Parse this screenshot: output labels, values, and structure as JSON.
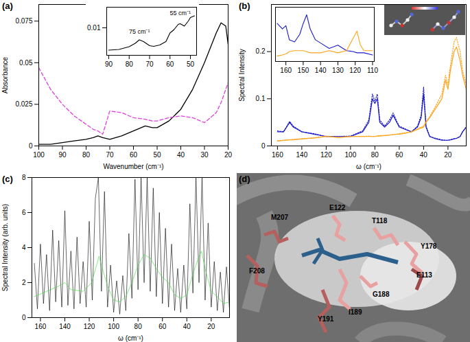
{
  "chart_data": [
    {
      "title": "(a)",
      "type": "line",
      "xlabel": "Wavenumber (cm⁻¹)",
      "ylabel": "Absorbance",
      "xlim": [
        100,
        20
      ],
      "xticks": [
        100,
        90,
        80,
        70,
        60,
        50,
        40,
        30,
        20
      ],
      "ylim": [
        0,
        0.085
      ],
      "yticks": [
        0,
        0.025,
        0.05,
        0.075
      ],
      "x": [
        100,
        95,
        90,
        85,
        80,
        77,
        75,
        73,
        70,
        65,
        60,
        55,
        52,
        50,
        45,
        40,
        35,
        30,
        25,
        23,
        21,
        20
      ],
      "series": [
        {
          "color": "#000000",
          "line_style": "solid",
          "values": [
            0.001,
            0.001,
            0.002,
            0.003,
            0.004,
            0.005,
            0.006,
            0.005,
            0.004,
            0.006,
            0.009,
            0.012,
            0.011,
            0.011,
            0.015,
            0.022,
            0.034,
            0.05,
            0.068,
            0.074,
            0.072,
            0.061
          ]
        },
        {
          "color": "#e040e0",
          "line_style": "dashed",
          "values": [
            0.047,
            0.034,
            0.025,
            0.018,
            0.013,
            0.01,
            0.009,
            0.007,
            0.021,
            0.02,
            0.017,
            0.016,
            0.015,
            0.015,
            0.017,
            0.018,
            0.017,
            0.014,
            0.02,
            0.026,
            0.034,
            0.038
          ]
        }
      ]
    },
    {
      "type": "line",
      "xlim": [
        91,
        47
      ],
      "xticks": [
        90,
        80,
        70,
        60,
        50
      ],
      "ylim": [
        0.002,
        0.016
      ],
      "yticks": [
        0.01
      ],
      "x": [
        90,
        85,
        80,
        77,
        75,
        73,
        70,
        68,
        65,
        62,
        60,
        58,
        56,
        55,
        53,
        51,
        50,
        48
      ],
      "series": [
        {
          "color": "#000000",
          "line_style": "solid",
          "values": [
            0.0035,
            0.0037,
            0.0045,
            0.0055,
            0.0065,
            0.006,
            0.0048,
            0.0046,
            0.005,
            0.006,
            0.0085,
            0.0095,
            0.011,
            0.0112,
            0.0105,
            0.012,
            0.013,
            0.0135
          ]
        }
      ],
      "annotations": [
        {
          "text": "75 cm⁻¹",
          "x": 75,
          "y": 0.0075
        },
        {
          "text": "55 cm⁻¹",
          "x": 55,
          "y": 0.0128
        }
      ]
    },
    {
      "title": "(b)",
      "type": "line",
      "xlabel": "ω (cm⁻¹)",
      "ylabel": "Spectral Intensity",
      "xlim": [
        165,
        5
      ],
      "xticks": [
        160,
        140,
        120,
        100,
        80,
        60,
        40,
        20
      ],
      "ylim": [
        0,
        0.3
      ],
      "yticks": [
        0,
        0.1,
        0.2
      ],
      "x": [
        160,
        155,
        150,
        147,
        140,
        130,
        120,
        110,
        100,
        90,
        85,
        82,
        80,
        78,
        76,
        72,
        68,
        65,
        62,
        60,
        55,
        50,
        45,
        42,
        40,
        38,
        35,
        30,
        25,
        22,
        20,
        18,
        15,
        13,
        10,
        8,
        5
      ],
      "series": [
        {
          "color": "#1a1acc",
          "line_style": "solid",
          "values": [
            0.03,
            0.03,
            0.05,
            0.04,
            0.03,
            0.025,
            0.02,
            0.02,
            0.02,
            0.03,
            0.05,
            0.1,
            0.09,
            0.1,
            0.05,
            0.04,
            0.05,
            0.065,
            0.05,
            0.04,
            0.035,
            0.03,
            0.04,
            0.06,
            0.11,
            0.04,
            0.02,
            0.015,
            0.012,
            0.012,
            0.012,
            0.013,
            0.015,
            0.016,
            0.02,
            0.03,
            0.04
          ]
        },
        {
          "color": "#1a1acc",
          "line_style": "dotted",
          "values": [
            0.032,
            0.03,
            0.052,
            0.042,
            0.03,
            0.026,
            0.02,
            0.02,
            0.021,
            0.032,
            0.055,
            0.11,
            0.095,
            0.11,
            0.055,
            0.042,
            0.055,
            0.07,
            0.052,
            0.042,
            0.036,
            0.03,
            0.042,
            0.065,
            0.125,
            0.042,
            0.02,
            0.016,
            0.013,
            0.012,
            0.012,
            0.013,
            0.015,
            0.016,
            0.02,
            0.03,
            0.04
          ]
        },
        {
          "color": "#ffa31a",
          "line_style": "solid",
          "values": [
            0.01,
            0.012,
            0.013,
            0.013,
            0.015,
            0.017,
            0.02,
            0.018,
            0.02,
            0.02,
            0.02,
            0.02,
            0.02,
            0.021,
            0.021,
            0.022,
            0.023,
            0.024,
            0.025,
            0.025,
            0.027,
            0.03,
            0.035,
            0.038,
            0.04,
            0.05,
            0.06,
            0.08,
            0.1,
            0.14,
            0.12,
            0.16,
            0.2,
            0.21,
            0.18,
            0.15,
            0.12
          ]
        },
        {
          "color": "#ffa31a",
          "line_style": "dotted",
          "values": [
            0.011,
            0.012,
            0.013,
            0.014,
            0.015,
            0.017,
            0.021,
            0.018,
            0.02,
            0.02,
            0.021,
            0.02,
            0.02,
            0.021,
            0.022,
            0.022,
            0.023,
            0.024,
            0.025,
            0.026,
            0.028,
            0.03,
            0.036,
            0.04,
            0.042,
            0.052,
            0.062,
            0.085,
            0.11,
            0.15,
            0.13,
            0.17,
            0.22,
            0.23,
            0.2,
            0.16,
            0.13
          ]
        }
      ]
    },
    {
      "type": "line",
      "tick_labels": "x",
      "xlim": [
        166,
        109
      ],
      "xticks": [
        160,
        150,
        140,
        130,
        120,
        110
      ],
      "ylim": [
        0.01,
        0.06
      ],
      "x": [
        165,
        162,
        160,
        158,
        155,
        152,
        150,
        148,
        146,
        143,
        140,
        135,
        130,
        125,
        121,
        119,
        117,
        115,
        110
      ],
      "series": [
        {
          "color": "#1a1acc",
          "line_style": "solid",
          "values": [
            0.045,
            0.04,
            0.043,
            0.03,
            0.028,
            0.035,
            0.045,
            0.053,
            0.04,
            0.03,
            0.027,
            0.022,
            0.025,
            0.02,
            0.019,
            0.018,
            0.018,
            0.018,
            0.016
          ]
        },
        {
          "color": "#ffa31a",
          "line_style": "solid",
          "values": [
            0.015,
            0.016,
            0.017,
            0.019,
            0.02,
            0.02,
            0.02,
            0.019,
            0.018,
            0.018,
            0.018,
            0.02,
            0.018,
            0.02,
            0.032,
            0.038,
            0.025,
            0.02,
            0.02
          ]
        }
      ]
    },
    {
      "title": "(c)",
      "type": "line",
      "xlabel": "ω (cm⁻¹)",
      "ylabel": "Spectral Intensity (arb. units)",
      "xlim": [
        167,
        5
      ],
      "xticks": [
        160,
        140,
        120,
        100,
        80,
        60,
        40,
        20
      ],
      "ylim": [
        0,
        8
      ],
      "yticks": [
        0,
        2,
        4,
        6,
        8
      ],
      "series": [
        {
          "color": "#000000",
          "line_style": "solid",
          "x": [
            165,
            162.5,
            160,
            157.5,
            155,
            152.5,
            150,
            147.5,
            145,
            142.5,
            140,
            137.5,
            135,
            132.5,
            130,
            127.5,
            125,
            122.5,
            120,
            117.5,
            115,
            112.5,
            110,
            107.5,
            105,
            102.5,
            100,
            97.5,
            95,
            92.5,
            90,
            87.5,
            85,
            82.5,
            80,
            77.5,
            75,
            72.5,
            70,
            67.5,
            65,
            62.5,
            60,
            57.5,
            55,
            52.5,
            50,
            47.5,
            45,
            42.5,
            40,
            37.5,
            35,
            32.5,
            30,
            27.5,
            25,
            22.5,
            20,
            17.5,
            15,
            12.5,
            10,
            7.5,
            5
          ],
          "values": [
            3.1,
            0.5,
            4.2,
            0.8,
            3.6,
            0.4,
            5.0,
            0.9,
            4.4,
            0.6,
            6.1,
            0.7,
            3.8,
            0.5,
            4.6,
            0.8,
            3.2,
            0.6,
            5.5,
            1.0,
            6.8,
            8.0,
            1.5,
            7.2,
            0.6,
            3.0,
            0.3,
            2.1,
            0.2,
            2.4,
            0.4,
            4.8,
            1.1,
            7.9,
            1.6,
            8.0,
            2.0,
            8.0,
            1.5,
            7.4,
            1.2,
            6.0,
            0.8,
            5.1,
            0.6,
            4.2,
            0.4,
            2.8,
            0.3,
            3.0,
            0.5,
            6.5,
            1.4,
            8.0,
            2.0,
            8.0,
            1.0,
            5.4,
            0.6,
            3.2,
            0.4,
            2.6,
            0.3,
            2.9,
            0.5
          ]
        },
        {
          "color": "#33e033",
          "line_style": "solid",
          "x": [
            165,
            155,
            145,
            140,
            135,
            125,
            118,
            112,
            110,
            105,
            100,
            95,
            90,
            85,
            80,
            75,
            70,
            65,
            60,
            55,
            50,
            45,
            40,
            35,
            30,
            28,
            25,
            20,
            15,
            10,
            5
          ],
          "values": [
            1.2,
            1.5,
            1.8,
            2,
            1.6,
            1.5,
            2,
            3.5,
            3,
            1.8,
            1,
            0.9,
            1.2,
            2,
            3,
            3.6,
            3.4,
            2.8,
            2.3,
            2,
            1.3,
            1.1,
            1.3,
            2.5,
            3.5,
            3.8,
            2.8,
            1.5,
            1.2,
            0.8,
            0.9
          ]
        }
      ]
    }
  ],
  "diagram": {
    "label": "(d)",
    "residues": [
      "M207",
      "E122",
      "T118",
      "Y178",
      "E113",
      "F208",
      "G188",
      "I189",
      "Y191"
    ]
  }
}
